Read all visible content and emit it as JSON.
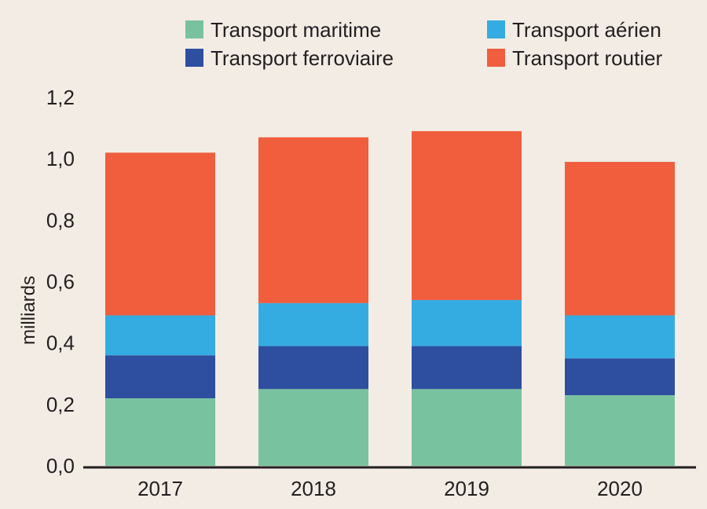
{
  "chart_data": {
    "type": "bar",
    "stacked": true,
    "categories": [
      "2017",
      "2018",
      "2019",
      "2020"
    ],
    "series": [
      {
        "name": "Transport maritime",
        "color": "#79c2a0",
        "values": [
          0.22,
          0.25,
          0.25,
          0.23
        ]
      },
      {
        "name": "Transport ferroviaire",
        "color": "#2e4ea0",
        "values": [
          0.14,
          0.14,
          0.14,
          0.12
        ]
      },
      {
        "name": "Transport aérien",
        "color": "#35ace1",
        "values": [
          0.13,
          0.14,
          0.15,
          0.14
        ]
      },
      {
        "name": "Transport routier",
        "color": "#f05e3e",
        "values": [
          0.53,
          0.54,
          0.55,
          0.5
        ]
      }
    ],
    "ylabel": "milliards",
    "xlabel": "",
    "ylim": [
      0,
      1.2
    ],
    "yticks": [
      "0,0",
      "0,2",
      "0,4",
      "0,6",
      "0,8",
      "1,0",
      "1,2"
    ],
    "legend_position": "top",
    "grid": false
  }
}
